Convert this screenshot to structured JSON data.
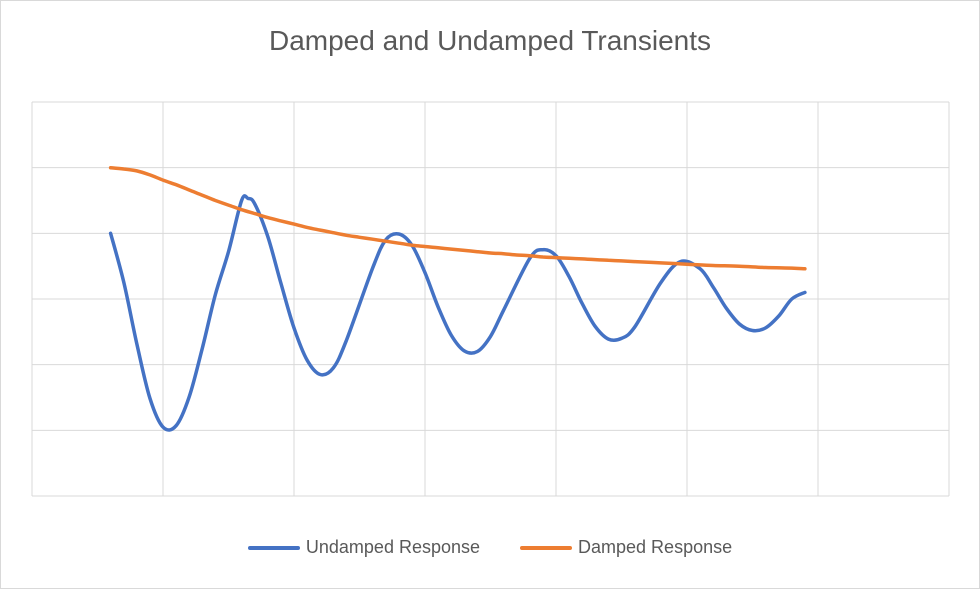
{
  "chart_data": {
    "type": "line",
    "title": "Damped and Undamped Transients",
    "xlabel": "",
    "ylabel": "",
    "grid": true,
    "legend_position": "bottom",
    "x_gridlines": 7,
    "y_gridlines": 6,
    "series": [
      {
        "name": "Undamped Response",
        "color": "#4472c4",
        "points": [
          [
            0.0,
            4.0
          ],
          [
            0.1,
            3.26
          ],
          [
            0.2,
            2.32
          ],
          [
            0.3,
            1.49
          ],
          [
            0.4,
            1.05
          ],
          [
            0.5,
            1.07
          ],
          [
            0.6,
            1.51
          ],
          [
            0.7,
            2.25
          ],
          [
            0.8,
            3.07
          ],
          [
            0.9,
            3.72
          ],
          [
            1.0,
            4.5
          ],
          [
            1.05,
            4.53
          ],
          [
            1.1,
            4.45
          ],
          [
            1.2,
            3.95
          ],
          [
            1.3,
            3.24
          ],
          [
            1.4,
            2.56
          ],
          [
            1.5,
            2.07
          ],
          [
            1.6,
            1.85
          ],
          [
            1.7,
            1.95
          ],
          [
            1.8,
            2.37
          ],
          [
            2.0,
            3.47
          ],
          [
            2.1,
            3.9
          ],
          [
            2.2,
            3.99
          ],
          [
            2.3,
            3.82
          ],
          [
            2.4,
            3.4
          ],
          [
            2.5,
            2.88
          ],
          [
            2.6,
            2.45
          ],
          [
            2.7,
            2.21
          ],
          [
            2.8,
            2.2
          ],
          [
            2.9,
            2.43
          ],
          [
            3.0,
            2.83
          ],
          [
            3.2,
            3.62
          ],
          [
            3.3,
            3.75
          ],
          [
            3.4,
            3.66
          ],
          [
            3.5,
            3.34
          ],
          [
            3.6,
            2.93
          ],
          [
            3.7,
            2.58
          ],
          [
            3.8,
            2.39
          ],
          [
            3.9,
            2.4
          ],
          [
            4.0,
            2.57
          ],
          [
            4.2,
            3.25
          ],
          [
            4.35,
            3.57
          ],
          [
            4.5,
            3.46
          ],
          [
            4.6,
            3.18
          ],
          [
            4.7,
            2.86
          ],
          [
            4.8,
            2.62
          ],
          [
            4.9,
            2.52
          ],
          [
            5.0,
            2.56
          ],
          [
            5.1,
            2.74
          ],
          [
            5.2,
            3.0
          ],
          [
            5.3,
            3.1
          ]
        ]
      },
      {
        "name": "Damped Response",
        "color": "#ed7d31",
        "points": [
          [
            0.0,
            5.0
          ],
          [
            0.1,
            4.98
          ],
          [
            0.2,
            4.95
          ],
          [
            0.3,
            4.89
          ],
          [
            0.4,
            4.81
          ],
          [
            0.5,
            4.74
          ],
          [
            0.6,
            4.66
          ],
          [
            0.7,
            4.58
          ],
          [
            0.8,
            4.5
          ],
          [
            0.9,
            4.43
          ],
          [
            1.0,
            4.36
          ],
          [
            1.1,
            4.3
          ],
          [
            1.2,
            4.24
          ],
          [
            1.3,
            4.19
          ],
          [
            1.4,
            4.14
          ],
          [
            1.5,
            4.09
          ],
          [
            1.6,
            4.05
          ],
          [
            1.7,
            4.01
          ],
          [
            1.8,
            3.97
          ],
          [
            1.9,
            3.94
          ],
          [
            2.0,
            3.91
          ],
          [
            2.1,
            3.88
          ],
          [
            2.2,
            3.85
          ],
          [
            2.3,
            3.82
          ],
          [
            2.4,
            3.8
          ],
          [
            2.5,
            3.78
          ],
          [
            2.6,
            3.76
          ],
          [
            2.7,
            3.74
          ],
          [
            2.8,
            3.72
          ],
          [
            2.9,
            3.7
          ],
          [
            3.0,
            3.69
          ],
          [
            3.1,
            3.67
          ],
          [
            3.2,
            3.66
          ],
          [
            3.3,
            3.64
          ],
          [
            3.4,
            3.63
          ],
          [
            3.5,
            3.62
          ],
          [
            3.6,
            3.61
          ],
          [
            3.7,
            3.6
          ],
          [
            3.8,
            3.59
          ],
          [
            3.9,
            3.58
          ],
          [
            4.0,
            3.57
          ],
          [
            4.2,
            3.55
          ],
          [
            4.4,
            3.53
          ],
          [
            4.6,
            3.51
          ],
          [
            4.8,
            3.5
          ],
          [
            5.0,
            3.48
          ],
          [
            5.2,
            3.47
          ],
          [
            5.3,
            3.46
          ]
        ]
      }
    ]
  }
}
